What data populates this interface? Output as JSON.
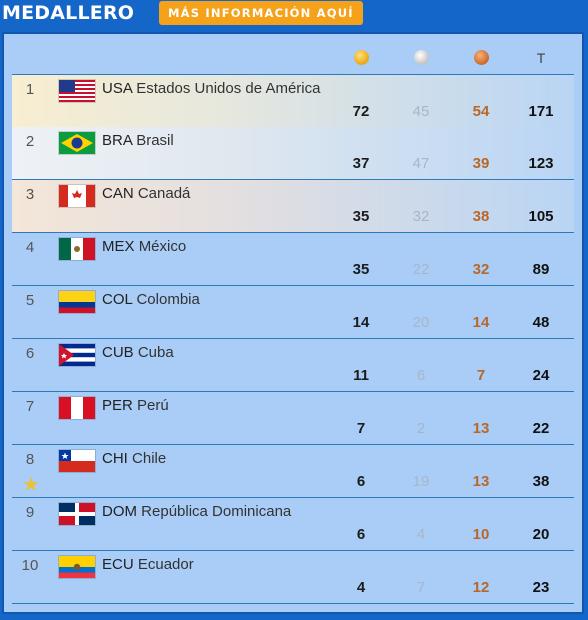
{
  "header": {
    "title": "MEDALLERO",
    "cta_label": "MÁS INFORMACIÓN AQUÍ"
  },
  "columns": {
    "gold_icon": "gold-medal-icon",
    "silver_icon": "silver-medal-icon",
    "bronze_icon": "bronze-medal-icon",
    "total_label": "T"
  },
  "rows": [
    {
      "rank": "1",
      "code": "USA",
      "name": "Estados Unidos de América",
      "gold": "72",
      "silver": "45",
      "bronze": "54",
      "total": "171"
    },
    {
      "rank": "2",
      "code": "BRA",
      "name": "Brasil",
      "gold": "37",
      "silver": "47",
      "bronze": "39",
      "total": "123"
    },
    {
      "rank": "3",
      "code": "CAN",
      "name": "Canadá",
      "gold": "35",
      "silver": "32",
      "bronze": "38",
      "total": "105"
    },
    {
      "rank": "4",
      "code": "MEX",
      "name": "México",
      "gold": "35",
      "silver": "22",
      "bronze": "32",
      "total": "89"
    },
    {
      "rank": "5",
      "code": "COL",
      "name": "Colombia",
      "gold": "14",
      "silver": "20",
      "bronze": "14",
      "total": "48"
    },
    {
      "rank": "6",
      "code": "CUB",
      "name": "Cuba",
      "gold": "11",
      "silver": "6",
      "bronze": "7",
      "total": "24"
    },
    {
      "rank": "7",
      "code": "PER",
      "name": "Perú",
      "gold": "7",
      "silver": "2",
      "bronze": "13",
      "total": "22"
    },
    {
      "rank": "8",
      "code": "CHI",
      "name": "Chile",
      "gold": "6",
      "silver": "19",
      "bronze": "13",
      "total": "38"
    },
    {
      "rank": "9",
      "code": "DOM",
      "name": "República Dominicana",
      "gold": "6",
      "silver": "4",
      "bronze": "10",
      "total": "20"
    },
    {
      "rank": "10",
      "code": "ECU",
      "name": "Ecuador",
      "gold": "4",
      "silver": "7",
      "bronze": "12",
      "total": "23"
    }
  ]
}
